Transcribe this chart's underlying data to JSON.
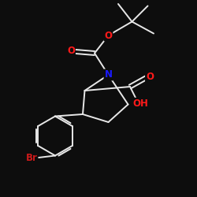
{
  "background": "#0d0d0d",
  "bond_color": "#e8e8e8",
  "atom_colors": {
    "O": "#ff1a1a",
    "N": "#1a1aff",
    "Br": "#cc1a1a",
    "C": "#e8e8e8"
  },
  "bond_width": 1.4,
  "font_size": 8.5
}
